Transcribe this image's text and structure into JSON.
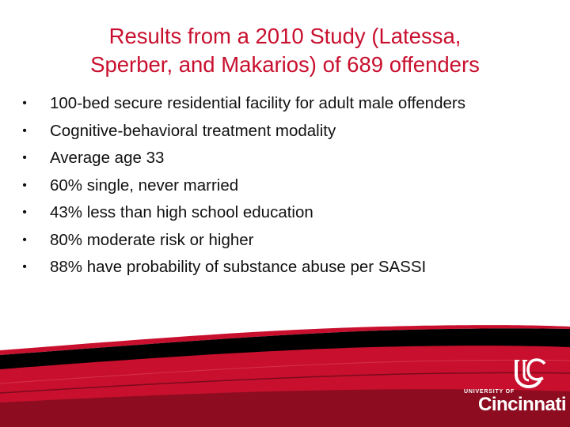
{
  "slide": {
    "title_lines": [
      "Results from a 2010 Study (Latessa,",
      "Sperber, and Makarios) of 689 offenders"
    ],
    "bullet_glyph": "•",
    "bullets": [
      "100-bed secure residential facility for adult male offenders",
      "Cognitive-behavioral treatment modality",
      "Average age 33",
      "60% single, never married",
      "43% less than high school education",
      "80% moderate risk or higher",
      "88% have probability of substance abuse per SASSI"
    ]
  },
  "footer": {
    "colors": {
      "red": "#c8102e",
      "dark_red": "#7a0a1a",
      "black": "#000000",
      "white": "#ffffff"
    },
    "logo": {
      "icon": "uc-monogram-icon",
      "university_of": "UNIVERSITY OF",
      "name": "Cincinnati"
    }
  }
}
